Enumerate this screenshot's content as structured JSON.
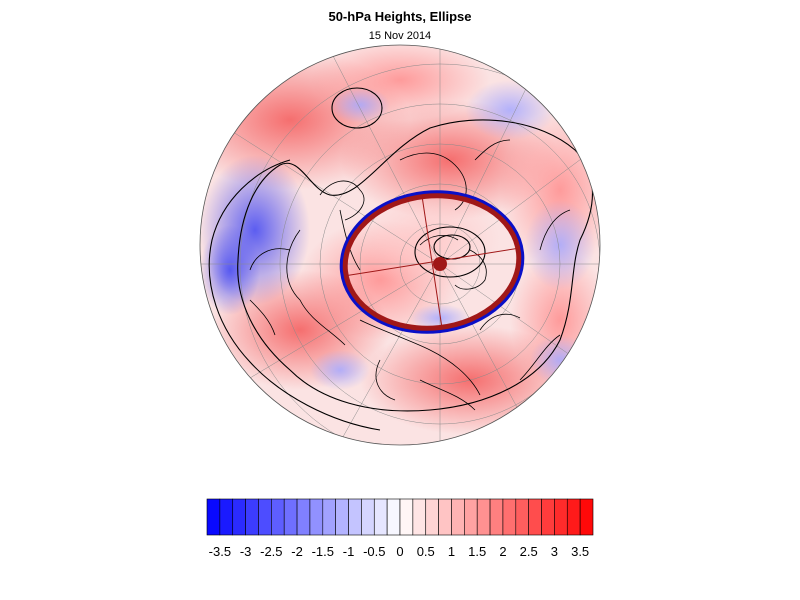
{
  "title": "50-hPa Heights, Ellipse",
  "date": "15 Nov 2014",
  "colorbar": {
    "tick_labels": [
      "-3.5",
      "-3",
      "-2.5",
      "-2",
      "-1.5",
      "-1",
      "-0.5",
      "0",
      "0.5",
      "1",
      "1.5",
      "2",
      "2.5",
      "3",
      "3.5"
    ],
    "min": -3.75,
    "max": 3.75,
    "bins": 30,
    "color_low": "#0000ff",
    "color_mid": "#ffffff",
    "color_high": "#ff0000"
  },
  "map": {
    "projection": "north-polar-stereographic",
    "shading": "height anomaly",
    "ocean_color": "#ffffff",
    "ellipse_colors": {
      "outer": "#0a10c8",
      "inner": "#a01818"
    },
    "ellipse_center_marker_color": "#a01818"
  }
}
